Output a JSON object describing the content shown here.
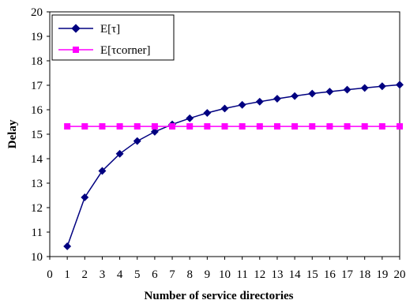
{
  "chart_data": {
    "type": "line",
    "title": "",
    "xlabel": "Number of service directories",
    "ylabel": "Delay",
    "xlim": [
      0,
      20
    ],
    "ylim": [
      10,
      20
    ],
    "x_ticks": [
      "0",
      "1",
      "2",
      "3",
      "4",
      "5",
      "6",
      "7",
      "8",
      "9",
      "10",
      "11",
      "12",
      "13",
      "14",
      "15",
      "16",
      "17",
      "18",
      "19",
      "20"
    ],
    "y_ticks": [
      "10",
      "11",
      "12",
      "13",
      "14",
      "15",
      "16",
      "17",
      "18",
      "19",
      "20"
    ],
    "grid": false,
    "legend_position": "top-left",
    "x": [
      1,
      2,
      3,
      4,
      5,
      6,
      7,
      8,
      9,
      10,
      11,
      12,
      13,
      14,
      15,
      16,
      17,
      18,
      19,
      20
    ],
    "series": [
      {
        "name": "E[τ]",
        "color": "#000080",
        "marker": "diamond",
        "values": [
          10.42,
          12.42,
          13.5,
          14.2,
          14.72,
          15.1,
          15.4,
          15.65,
          15.87,
          16.05,
          16.2,
          16.33,
          16.45,
          16.56,
          16.66,
          16.74,
          16.82,
          16.89,
          16.96,
          17.02
        ]
      },
      {
        "name": "E[τcorner]",
        "color": "#ff00ff",
        "marker": "square",
        "values": [
          15.32,
          15.32,
          15.32,
          15.32,
          15.32,
          15.32,
          15.32,
          15.32,
          15.32,
          15.32,
          15.32,
          15.32,
          15.32,
          15.32,
          15.32,
          15.32,
          15.32,
          15.32,
          15.32,
          15.32
        ]
      }
    ]
  }
}
